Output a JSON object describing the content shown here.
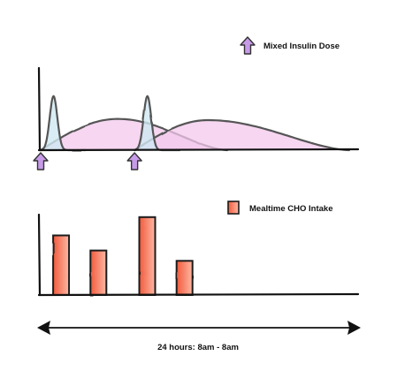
{
  "colors": {
    "short_acting_fill": "#cfe8f3",
    "long_acting_fill": "#f3c8ec",
    "curve_stroke": "#555555",
    "arrow_fill": "#c79be8",
    "bar_fill": "#f05a3c",
    "bar_fill_light": "#ffb8a4",
    "axis_stroke": "#111111"
  },
  "chart_data": [
    {
      "type": "area",
      "legend": {
        "label": "Mixed Insulin Dose",
        "icon": "up-arrow-icon",
        "placement": "top-right"
      },
      "x_range": [
        0,
        24
      ],
      "y_range": [
        0,
        1
      ],
      "doses": [
        {
          "x": 0,
          "curves": [
            {
              "kind": "short-peak",
              "peak_x": 1.0,
              "peak_y": 0.9,
              "end_x": 3.5
            },
            {
              "kind": "broad",
              "peak_x": 6.0,
              "peak_y": 0.52,
              "end_x": 14.5
            }
          ]
        },
        {
          "x": 7.3,
          "curves": [
            {
              "kind": "short-peak",
              "peak_x": 8.3,
              "peak_y": 0.9,
              "end_x": 10.8
            },
            {
              "kind": "broad",
              "peak_x": 13.0,
              "peak_y": 0.5,
              "end_x": 24.0
            }
          ]
        }
      ]
    },
    {
      "type": "bar",
      "legend": {
        "label": "Mealtime CHO Intake",
        "icon": "bar-swatch-icon",
        "placement": "top-right"
      },
      "x_range": [
        0,
        24
      ],
      "bars": [
        {
          "x": 0.9,
          "value": 0.75
        },
        {
          "x": 3.8,
          "value": 0.56
        },
        {
          "x": 7.6,
          "value": 0.98
        },
        {
          "x": 10.5,
          "value": 0.43
        }
      ],
      "ylim": [
        0,
        1
      ]
    }
  ],
  "timeline": {
    "label": "24 hours: 8am - 8am"
  }
}
